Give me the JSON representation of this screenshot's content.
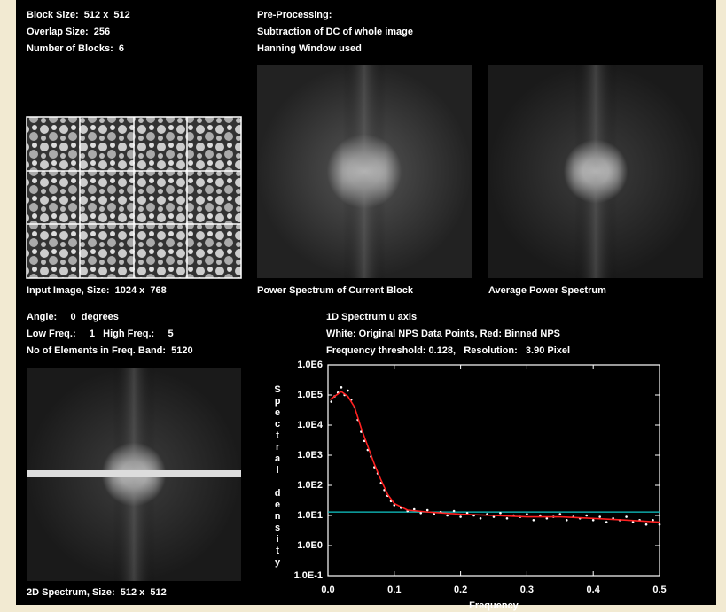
{
  "block_info": [
    "Block Size:  512 x  512",
    "Overlap Size:  256",
    "Number of Blocks:  6"
  ],
  "preprocessing": [
    "Pre-Processing:",
    "Subtraction of DC of whole image",
    "Hanning Window used"
  ],
  "panels": {
    "input": "Input Image, Size:  1024 x  768",
    "current": "Power Spectrum of Current Block",
    "average": "Average Power Spectrum",
    "spectrum2d": "2D Spectrum, Size:  512 x  512"
  },
  "band_info": [
    "Angle:     0  degrees",
    "Low Freq.:     1   High Freq.:     5",
    "No of Elements in Freq. Band:  5120"
  ],
  "spectrum_info": [
    "1D Spectrum u axis",
    "White: Original NPS Data Points, Red: Binned NPS",
    "Frequency threshold: 0.128,   Resolution:   3.90 Pixel"
  ],
  "chart_data": {
    "type": "scatter",
    "y_label": "Spectral density",
    "x_label": "Frequency",
    "xlim": [
      0,
      0.5
    ],
    "xticks": [
      {
        "value": 0,
        "label": "0.0"
      },
      0.1,
      0.2,
      0.3,
      0.4,
      0.5
    ],
    "ylim": [
      0.1,
      1000000
    ],
    "log_y": true,
    "yticks": [
      {
        "value": 0.1,
        "label": "1.0E-1"
      },
      {
        "value": 1,
        "label": "1.0E0"
      },
      {
        "value": 10,
        "label": "1.0E1"
      },
      {
        "value": 100,
        "label": "1.0E2"
      },
      {
        "value": 1000,
        "label": "1.0E3"
      },
      {
        "value": 10000,
        "label": "1.0E4"
      },
      {
        "value": 100000,
        "label": "1.0E5"
      },
      {
        "value": 1000000,
        "label": "1.0E6"
      }
    ],
    "threshold": {
      "value": 13,
      "color": "#10c8c8"
    },
    "series": [
      {
        "mode": "points",
        "color": "#ffffff",
        "x": [
          0.005,
          0.01,
          0.015,
          0.02,
          0.025,
          0.03,
          0.035,
          0.04,
          0.045,
          0.05,
          0.055,
          0.06,
          0.065,
          0.07,
          0.075,
          0.08,
          0.085,
          0.09,
          0.095,
          0.1,
          0.11,
          0.12,
          0.13,
          0.14,
          0.15,
          0.16,
          0.17,
          0.18,
          0.19,
          0.2,
          0.21,
          0.22,
          0.23,
          0.24,
          0.25,
          0.26,
          0.27,
          0.28,
          0.29,
          0.3,
          0.31,
          0.32,
          0.33,
          0.34,
          0.35,
          0.36,
          0.37,
          0.38,
          0.39,
          0.4,
          0.41,
          0.42,
          0.43,
          0.44,
          0.45,
          0.46,
          0.47,
          0.48,
          0.49,
          0.5
        ],
        "values": [
          60000,
          90000,
          120000,
          180000,
          100000,
          140000,
          70000,
          40000,
          15000,
          6000,
          3000,
          1500,
          900,
          400,
          250,
          120,
          70,
          45,
          30,
          22,
          18,
          14,
          16,
          12,
          15,
          11,
          13,
          10,
          14,
          9,
          12,
          10,
          8,
          11,
          9,
          12,
          8,
          10,
          9,
          11,
          7,
          10,
          8,
          9,
          11,
          7,
          9,
          8,
          10,
          7,
          9,
          6,
          8,
          7,
          9,
          6,
          7,
          5,
          7,
          5
        ]
      },
      {
        "mode": "line",
        "color": "#ff2020",
        "x": [
          0.003,
          0.01,
          0.02,
          0.03,
          0.04,
          0.05,
          0.06,
          0.07,
          0.08,
          0.09,
          0.1,
          0.12,
          0.15,
          0.2,
          0.25,
          0.3,
          0.35,
          0.4,
          0.45,
          0.5
        ],
        "values": [
          70000,
          90000,
          130000,
          90000,
          40000,
          8000,
          2000,
          500,
          150,
          50,
          25,
          15,
          13,
          11,
          10,
          9,
          9,
          8,
          7,
          6
        ]
      }
    ]
  }
}
